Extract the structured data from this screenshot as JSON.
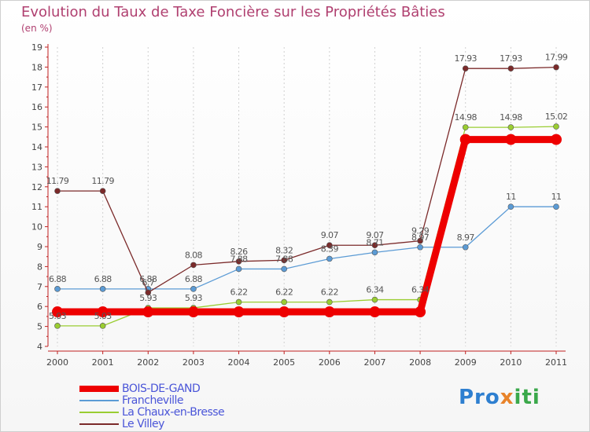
{
  "chart_data": {
    "type": "line",
    "title": "Evolution du Taux de Taxe Foncière sur les Propriétés Bâties",
    "ylabel": "(en %)",
    "xlabel": "",
    "categories": [
      "2000",
      "2001",
      "2002",
      "2003",
      "2004",
      "2005",
      "2006",
      "2007",
      "2008",
      "2009",
      "2010",
      "2011"
    ],
    "ylim": [
      4,
      19
    ],
    "yticks": [
      4,
      5,
      6,
      7,
      8,
      9,
      10,
      11,
      12,
      13,
      14,
      15,
      16,
      17,
      18,
      19
    ],
    "series": [
      {
        "name": "BOIS-DE-GAND",
        "color": "#ee0000",
        "labels": false,
        "values": [
          5.73,
          5.73,
          5.73,
          5.73,
          5.73,
          5.73,
          5.73,
          5.73,
          5.73,
          14.37,
          14.37,
          14.37
        ]
      },
      {
        "name": "Francheville",
        "color": "#5b9bd5",
        "labels": true,
        "values": [
          6.88,
          6.88,
          6.88,
          6.88,
          7.88,
          7.88,
          8.39,
          8.71,
          8.97,
          8.97,
          11,
          11
        ]
      },
      {
        "name": "La Chaux-en-Bresse",
        "color": "#9acd32",
        "labels": true,
        "values": [
          5.03,
          5.03,
          5.93,
          5.93,
          6.22,
          6.22,
          6.22,
          6.34,
          6.34,
          14.98,
          14.98,
          15.02
        ]
      },
      {
        "name": "Le Villey",
        "color": "#7b2a2a",
        "labels": true,
        "values": [
          11.79,
          11.79,
          6.7,
          8.08,
          8.26,
          8.32,
          9.07,
          9.07,
          9.29,
          17.93,
          17.93,
          17.99
        ]
      }
    ]
  },
  "logo": {
    "part1": "Pro",
    "part2": "x",
    "part3": "iti"
  }
}
